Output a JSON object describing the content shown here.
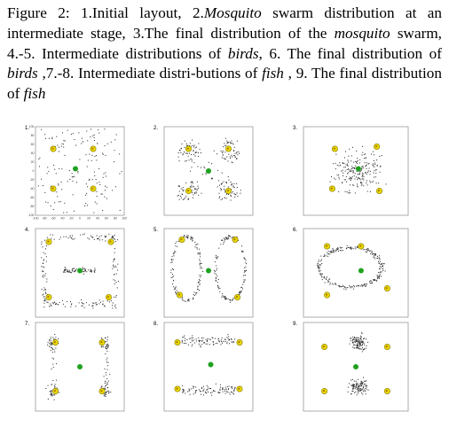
{
  "figure": {
    "caption": {
      "label": "Figure 2:",
      "segments": [
        {
          "text": "Figure 2:  1.Initial layout, 2.",
          "italic": false
        },
        {
          "text": "Mosquito",
          "italic": true
        },
        {
          "text": " swarm distribution at an intermediate stage, 3.The final distribution of the ",
          "italic": false
        },
        {
          "text": "mosquito",
          "italic": true
        },
        {
          "text": " swarm, 4.-5. Intermediate distributions of ",
          "italic": false
        },
        {
          "text": "birds",
          "italic": true
        },
        {
          "text": ", 6. The final distribution of ",
          "italic": false
        },
        {
          "text": "birds",
          "italic": true
        },
        {
          "text": " ,7.-8. Intermediate distri-butions of ",
          "italic": false
        },
        {
          "text": "fish",
          "italic": true
        },
        {
          "text": " , 9. The final distribution of ",
          "italic": false
        },
        {
          "text": "fish",
          "italic": true
        }
      ]
    },
    "colors": {
      "agent": "#222222",
      "target": "#e8d800",
      "target_stroke": "#8a7d00",
      "leader": "#1fa11f"
    },
    "axis_ticks": {
      "y": [
        "100",
        "80",
        "60",
        "40",
        "20",
        "0",
        "-20",
        "-40",
        "-60",
        "-80",
        "-100"
      ],
      "x": [
        "-100",
        "-80",
        "-60",
        "-40",
        "-20",
        "0",
        "20",
        "40",
        "60",
        "80",
        "100"
      ]
    },
    "panels": [
      {
        "label": "1.",
        "distribution": "random",
        "targets": [
          [
            -60,
            50
          ],
          [
            30,
            50
          ],
          [
            -60,
            -40
          ],
          [
            30,
            -40
          ]
        ],
        "leader": [
          -10,
          5
        ]
      },
      {
        "label": "2.",
        "distribution": "loose-rings",
        "targets": [
          [
            -45,
            50
          ],
          [
            45,
            50
          ],
          [
            -45,
            -45
          ],
          [
            45,
            -45
          ]
        ],
        "leader": [
          0,
          0
        ]
      },
      {
        "label": "3.",
        "distribution": "dense-center",
        "targets": [
          [
            -40,
            50
          ],
          [
            40,
            55
          ],
          [
            -45,
            -40
          ],
          [
            45,
            -45
          ]
        ],
        "leader": [
          5,
          5
        ]
      },
      {
        "label": "4.",
        "distribution": "square-loop",
        "targets": [
          [
            -70,
            70
          ],
          [
            70,
            70
          ],
          [
            -70,
            -55
          ],
          [
            65,
            -55
          ]
        ],
        "leader": [
          0,
          5
        ]
      },
      {
        "label": "5.",
        "distribution": "double-loop",
        "targets": [
          [
            -60,
            75
          ],
          [
            60,
            75
          ],
          [
            -65,
            -50
          ],
          [
            65,
            -55
          ]
        ],
        "leader": [
          0,
          5
        ]
      },
      {
        "label": "6.",
        "distribution": "single-loop",
        "targets": [
          [
            -55,
            60
          ],
          [
            10,
            60
          ],
          [
            -55,
            -50
          ],
          [
            60,
            -35
          ]
        ],
        "leader": [
          10,
          5
        ]
      },
      {
        "label": "7.",
        "distribution": "corner-clusters",
        "targets": [
          [
            -55,
            55
          ],
          [
            50,
            55
          ],
          [
            -55,
            -55
          ],
          [
            50,
            -55
          ]
        ],
        "leader": [
          0,
          0
        ]
      },
      {
        "label": "8.",
        "distribution": "horizontal-bands",
        "targets": [
          [
            -70,
            55
          ],
          [
            70,
            55
          ],
          [
            -70,
            -50
          ],
          [
            70,
            -50
          ]
        ],
        "leader": [
          5,
          5
        ]
      },
      {
        "label": "9.",
        "distribution": "vertical-clusters",
        "targets": [
          [
            -60,
            45
          ],
          [
            60,
            45
          ],
          [
            -60,
            -55
          ],
          [
            60,
            -55
          ]
        ],
        "leader": [
          0,
          0
        ]
      }
    ]
  }
}
